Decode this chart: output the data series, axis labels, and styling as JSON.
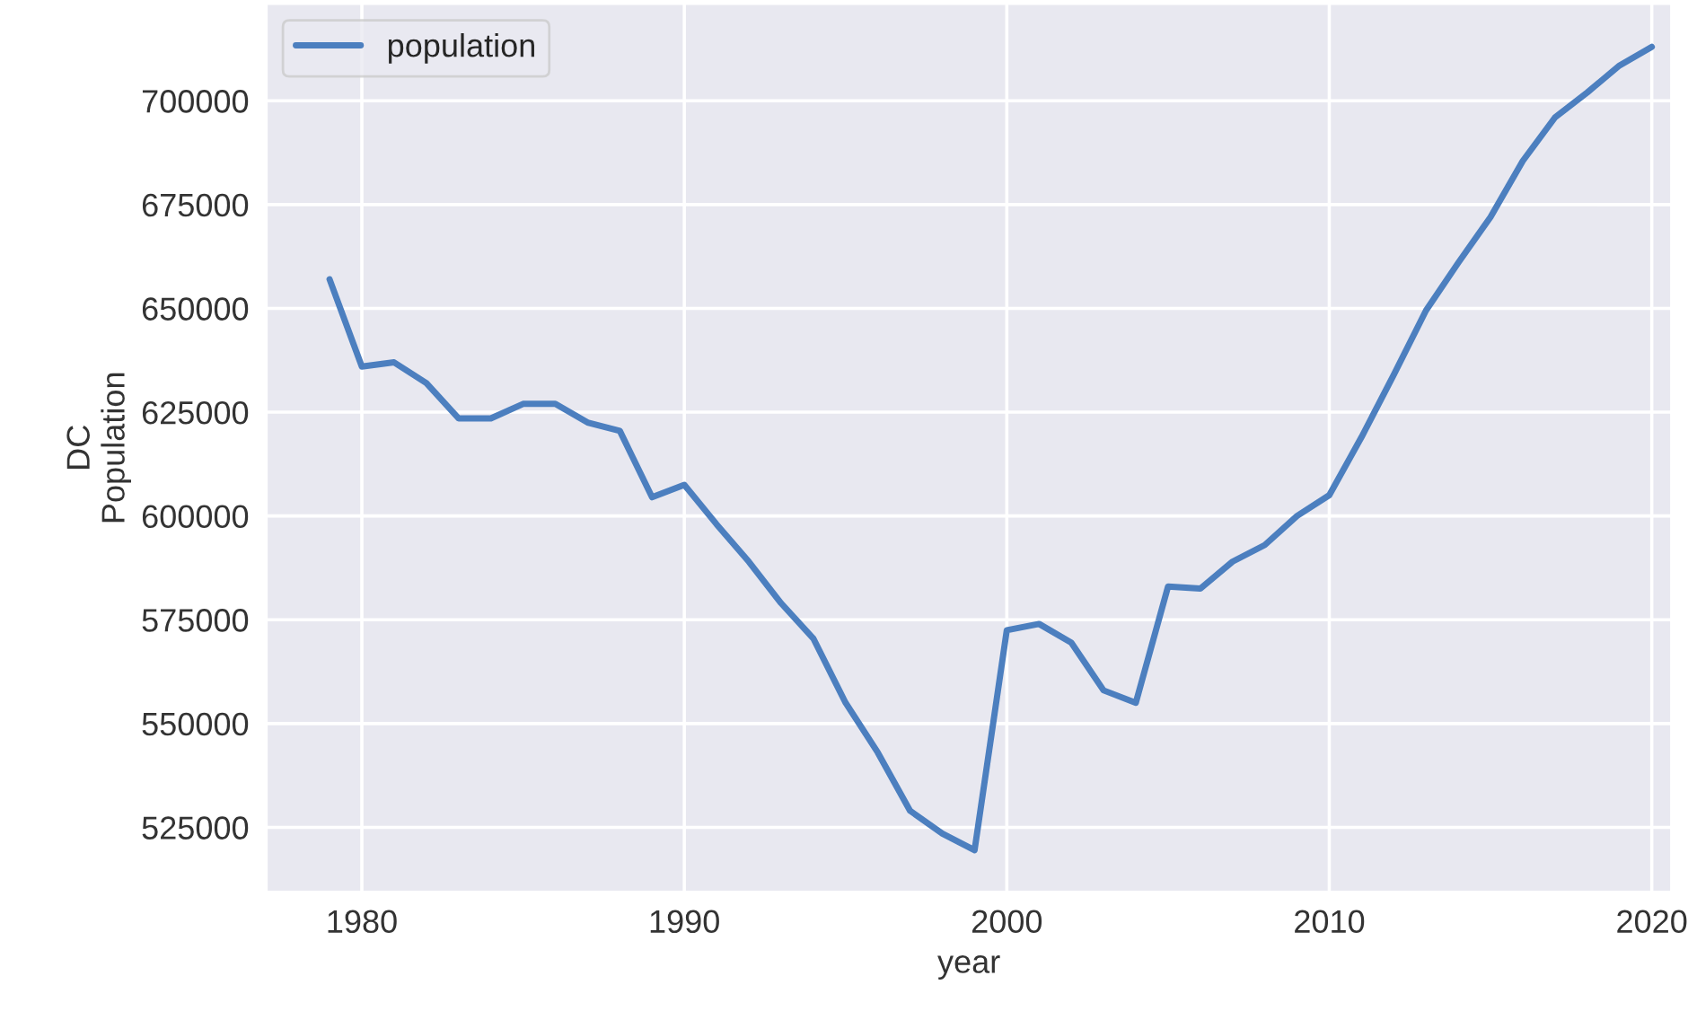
{
  "chart_data": {
    "type": "line",
    "xlabel": "year",
    "ylabel": "DC\nPopulation",
    "x": [
      1979,
      1980,
      1981,
      1982,
      1983,
      1984,
      1985,
      1986,
      1987,
      1988,
      1989,
      1990,
      1991,
      1992,
      1993,
      1994,
      1995,
      1996,
      1997,
      1998,
      1999,
      2000,
      2001,
      2002,
      2003,
      2004,
      2005,
      2006,
      2007,
      2008,
      2009,
      2010,
      2011,
      2012,
      2013,
      2014,
      2015,
      2016,
      2017,
      2018,
      2019,
      2020
    ],
    "series": [
      {
        "name": "population",
        "color": "#4c7fbf",
        "values": [
          657000,
          636000,
          637000,
          632000,
          623500,
          623500,
          627000,
          627000,
          622500,
          620500,
          604500,
          607500,
          598000,
          589000,
          579000,
          570500,
          555000,
          543000,
          529000,
          523500,
          519500,
          572500,
          574000,
          569500,
          558000,
          555000,
          583000,
          582500,
          589000,
          593000,
          600000,
          605000,
          619000,
          634000,
          649500,
          661000,
          672000,
          685500,
          696000,
          702000,
          708500,
          713000
        ]
      }
    ],
    "xlim": [
      1977.05,
      2020.6
    ],
    "xticks": [
      1980,
      1990,
      2000,
      2010,
      2020
    ],
    "ylim": [
      509500,
      723300
    ],
    "yticks": [
      525000,
      550000,
      575000,
      600000,
      625000,
      650000,
      675000,
      700000
    ],
    "grid": true,
    "legend": "top left",
    "marker": "none",
    "line_style": "solid"
  }
}
